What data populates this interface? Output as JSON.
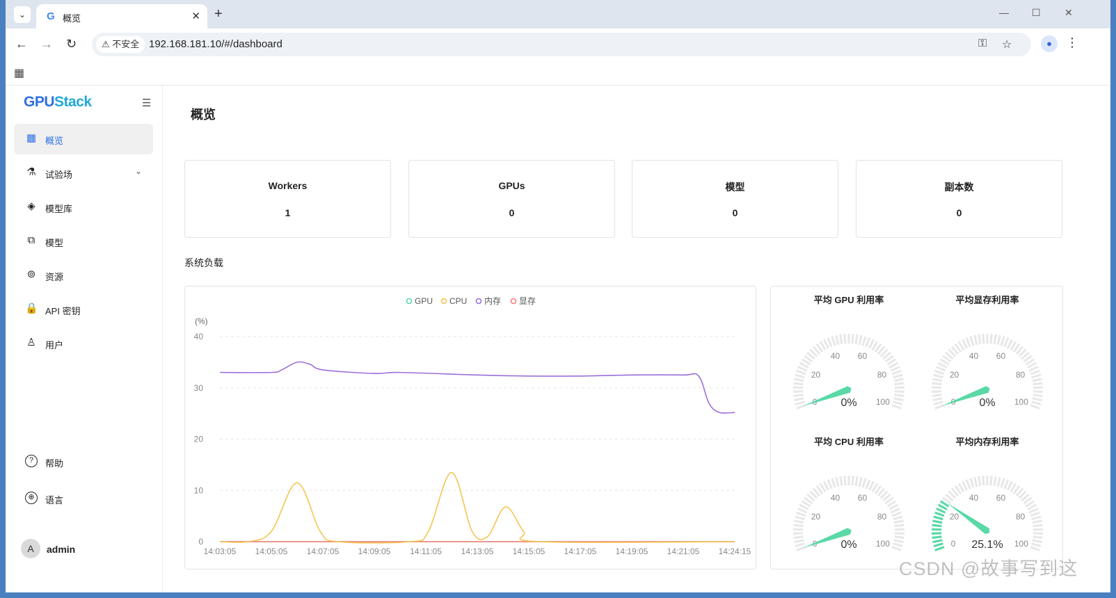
{
  "browser": {
    "tab_title": "概览",
    "tab_favicon": "G",
    "security_label": "不安全",
    "url": "192.168.181.10/#/dashboard"
  },
  "sidebar": {
    "logo_main": "GPU",
    "logo_accent": "Stack",
    "items": [
      {
        "label": "概览",
        "icon": "dashboard-icon",
        "glyph": "▦",
        "active": true
      },
      {
        "label": "试验场",
        "icon": "flask-icon",
        "glyph": "⚗",
        "chevron": true
      },
      {
        "label": "模型库",
        "icon": "layers-icon",
        "glyph": "◈"
      },
      {
        "label": "模型",
        "icon": "model-icon",
        "glyph": "⧉"
      },
      {
        "label": "资源",
        "icon": "resources-icon",
        "glyph": "⊚"
      },
      {
        "label": "API 密钥",
        "icon": "lock-icon",
        "glyph": "🔒"
      },
      {
        "label": "用户",
        "icon": "user-icon",
        "glyph": "♙"
      }
    ],
    "bottom_items": [
      {
        "label": "帮助",
        "icon": "help-icon",
        "glyph": "?"
      },
      {
        "label": "语言",
        "icon": "globe-icon",
        "glyph": "⊕"
      }
    ],
    "user": {
      "initial": "A",
      "name": "admin"
    }
  },
  "main": {
    "title": "概览",
    "cards": [
      {
        "label": "Workers",
        "value": "1"
      },
      {
        "label": "GPUs",
        "value": "0"
      },
      {
        "label": "模型",
        "value": "0"
      },
      {
        "label": "副本数",
        "value": "0"
      }
    ],
    "section_title": "系统负载"
  },
  "chart_data": [
    {
      "type": "line",
      "ylabel": "(%)",
      "ylim": [
        0,
        40
      ],
      "yticks": [
        0,
        10,
        20,
        30,
        40
      ],
      "legend_position": "top-center",
      "grid": true,
      "x": [
        "14:03:05",
        "14:05:05",
        "14:07:05",
        "14:09:05",
        "14:11:05",
        "14:13:05",
        "14:15:05",
        "14:17:05",
        "14:19:05",
        "14:21:05",
        "14:24:15"
      ],
      "series": [
        {
          "name": "GPU",
          "color": "#5ad8a6",
          "values": [
            0,
            0,
            0,
            0,
            0,
            0,
            0,
            0,
            0,
            0,
            0
          ]
        },
        {
          "name": "CPU",
          "color": "#f6c453",
          "values": [
            0,
            0.3,
            0,
            0,
            0,
            0,
            0,
            0,
            0,
            0,
            0
          ],
          "points": [
            [
              0,
              0
            ],
            [
              0.55,
              0
            ],
            [
              1.0,
              2
            ],
            [
              1.5,
              11.5
            ],
            [
              1.95,
              2
            ],
            [
              2.3,
              0
            ],
            [
              3.7,
              0
            ],
            [
              4.05,
              2
            ],
            [
              4.5,
              13.5
            ],
            [
              4.9,
              2
            ],
            [
              5.2,
              1
            ],
            [
              5.55,
              6.8
            ],
            [
              5.9,
              2
            ],
            [
              6.2,
              0
            ],
            [
              10.0,
              0
            ]
          ]
        },
        {
          "name": "内存",
          "color": "#9b6fd9",
          "values": [
            33.0,
            33.0,
            33.3,
            32.8,
            33.0,
            32.5,
            32.3,
            32.3,
            32.5,
            32.5,
            25.2
          ],
          "points": [
            [
              0,
              33.0
            ],
            [
              1.0,
              33.0
            ],
            [
              1.2,
              33.5
            ],
            [
              1.5,
              35.0
            ],
            [
              1.75,
              34.6
            ],
            [
              2.0,
              33.5
            ],
            [
              3.0,
              32.8
            ],
            [
              3.5,
              33.0
            ],
            [
              5.0,
              32.5
            ],
            [
              6.0,
              32.3
            ],
            [
              7.0,
              32.3
            ],
            [
              8.0,
              32.5
            ],
            [
              9.0,
              32.5
            ],
            [
              9.3,
              32.3
            ],
            [
              9.5,
              27.0
            ],
            [
              9.7,
              25.2
            ],
            [
              10.0,
              25.2
            ]
          ]
        },
        {
          "name": "显存",
          "color": "#ff7a7a",
          "values": [
            0,
            0,
            0,
            0,
            0,
            0,
            0,
            0,
            0,
            0,
            0
          ]
        }
      ]
    },
    {
      "type": "gauge",
      "gauges": [
        {
          "title": "平均 GPU 利用率",
          "value": 0,
          "label": "0%"
        },
        {
          "title": "平均显存利用率",
          "value": 0,
          "label": "0%"
        },
        {
          "title": "平均 CPU 利用率",
          "value": 0,
          "label": "0%"
        },
        {
          "title": "平均内存利用率",
          "value": 25.1,
          "label": "25.1%"
        }
      ],
      "range": [
        0,
        100
      ],
      "tick_labels": [
        "0",
        "20",
        "40",
        "60",
        "80",
        "100"
      ],
      "accent_color": "#5ad8a6"
    }
  ],
  "watermark": "CSDN @故事写到这"
}
